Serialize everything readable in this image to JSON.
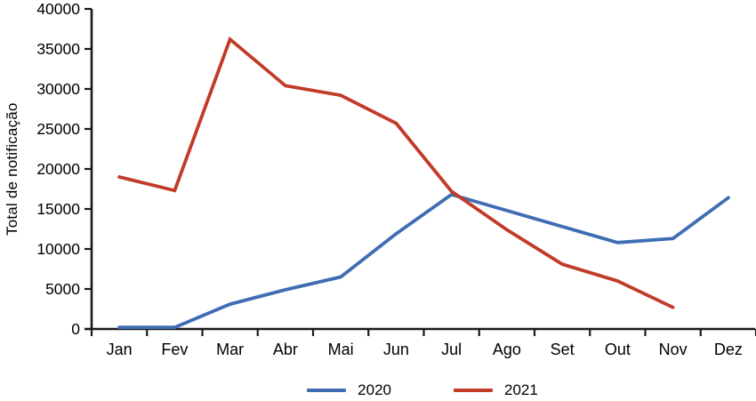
{
  "chart_data": {
    "type": "line",
    "title": "",
    "xlabel": "",
    "ylabel": "Total de notificação",
    "categories": [
      "Jan",
      "Fev",
      "Mar",
      "Abr",
      "Mai",
      "Jun",
      "Jul",
      "Ago",
      "Set",
      "Out",
      "Nov",
      "Dez"
    ],
    "series": [
      {
        "name": "2020",
        "color": "#3E6DB3",
        "values": [
          200,
          200,
          3100,
          4900,
          6500,
          11900,
          16800,
          14800,
          12800,
          10800,
          11300,
          16400
        ]
      },
      {
        "name": "2021",
        "color": "#C13B28",
        "values": [
          19000,
          17300,
          36200,
          30400,
          29200,
          25700,
          17200,
          12400,
          8100,
          6000,
          2700,
          null
        ]
      }
    ],
    "ylim": [
      0,
      40000
    ],
    "ytick_step": 5000,
    "ytick_labels": [
      "0",
      "5000",
      "10000",
      "15000",
      "20000",
      "25000",
      "30000",
      "35000",
      "40000"
    ],
    "grid": false,
    "legend_position": "bottom",
    "axis_color": "#1a1a1a",
    "text_color": "#000000"
  }
}
